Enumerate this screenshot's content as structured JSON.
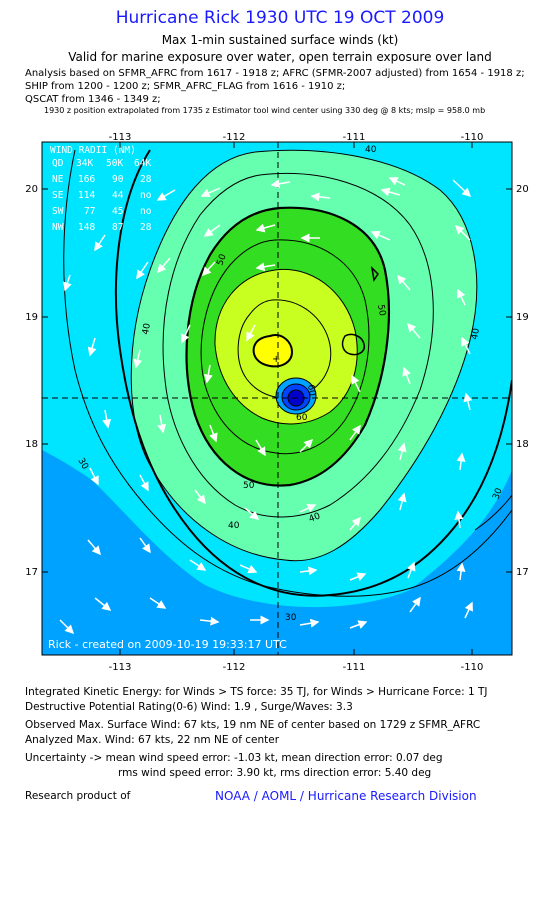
{
  "header": {
    "title": "Hurricane Rick 1930 UTC 19 OCT 2009",
    "subtitle": "Max 1-min sustained surface winds (kt)",
    "validity": "Valid for marine exposure over water, open terrain exposure over land",
    "analysis_lines": [
      "Analysis based on  SFMR_AFRC from 1617 - 1918 z;  AFRC (SFMR-2007 adjusted) from 1654 - 1918 z;",
      "SHIP from 1200 - 1200 z;  SFMR_AFRC_FLAG from 1616 - 1910 z;",
      "QSCAT from 1346 - 1349 z;"
    ],
    "position_note": "1930 z position extrapolated from 1735 z Estimator tool wind center using 330 deg @ 8 kts; mslp = 958.0 mb"
  },
  "map": {
    "lon_ticks": [
      "-113",
      "-112",
      "-111",
      "-110"
    ],
    "lat_ticks": [
      "20",
      "19",
      "18",
      "17"
    ],
    "contour_labels": [
      "30",
      "30",
      "30",
      "30",
      "40",
      "40",
      "40",
      "40",
      "40",
      "50",
      "50",
      "50",
      "60",
      "60"
    ],
    "wind_radii": {
      "title": "WIND RADII (NM)",
      "columns": [
        "QD",
        "34K",
        "50K",
        "64K"
      ],
      "rows": [
        [
          "NE",
          "166",
          "90",
          "28"
        ],
        [
          "SE",
          "114",
          "44",
          "no"
        ],
        [
          "SW",
          "77",
          "45",
          "no"
        ],
        [
          "NW",
          "148",
          "87",
          "28"
        ]
      ]
    },
    "credit_line": "Rick - created on 2009-10-19 19:33:17 UTC",
    "colors": {
      "band_lt30": "#00a2ff",
      "band_30_40": "#00e5ff",
      "band_40_50": "#66ffb0",
      "band_50_64": "#33dd22",
      "band_64_80": "#c8ff20",
      "band_gt80": "#ffff00",
      "eye": "#0000cc"
    }
  },
  "footer": {
    "ike": "Integrated Kinetic Energy:  for Winds > TS force: 35 TJ,  for Winds > Hurricane Force: 1 TJ",
    "dpr": "Destructive Potential Rating(0-6)   Wind: 1.9 , Surge/Waves: 3.3",
    "observed": "Observed Max. Surface Wind: 67 kts, 19 nm NE of center based on 1729 z SFMR_AFRC",
    "analyzed": "Analyzed Max. Wind: 67 kts, 22 nm NE of center",
    "uncertainty1": "Uncertainty -> mean wind speed error:  -1.03 kt,   mean direction error: 0.07 deg",
    "uncertainty2": "rms wind speed error: 3.90 kt,   rms direction error: 5.40 deg",
    "research": "Research product of",
    "org": "NOAA / AOML / Hurricane Research Division"
  }
}
